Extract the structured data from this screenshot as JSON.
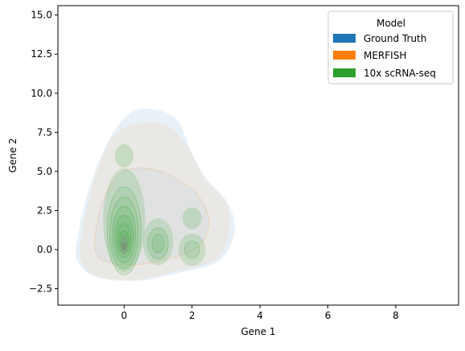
{
  "chart_data": {
    "type": "kde-density",
    "title": "",
    "xlabel": "Gene 1",
    "ylabel": "Gene 2",
    "xlim": [
      -1.95,
      9.85
    ],
    "ylim": [
      -3.55,
      15.6
    ],
    "xticks": [
      0,
      2,
      4,
      6,
      8
    ],
    "xtick_labels": [
      "0",
      "2",
      "4",
      "6",
      "8"
    ],
    "yticks": [
      -2.5,
      0.0,
      2.5,
      5.0,
      7.5,
      10.0,
      12.5,
      15.0
    ],
    "ytick_labels": [
      "−2.5",
      "0.0",
      "2.5",
      "5.0",
      "7.5",
      "10.0",
      "12.5",
      "15.0"
    ],
    "grid": false,
    "legend": {
      "title": "Model",
      "placement": "top-right",
      "entries": [
        {
          "name": "Ground Truth",
          "color": "#1f77b4"
        },
        {
          "name": "MERFISH",
          "color": "#ff7f0e"
        },
        {
          "name": "10x scRNA-seq",
          "color": "#2ca02c"
        }
      ]
    },
    "series": [
      {
        "name": "Ground Truth",
        "color": "#1f77b4",
        "approx_outer_extent": {
          "x": [
            -1.4,
            3.2
          ],
          "y": [
            -2.0,
            9.0
          ]
        },
        "modes": [
          {
            "x": 0,
            "y": 0.3
          },
          {
            "x": 1,
            "y": 0.5
          },
          {
            "x": 2,
            "y": 0.0
          }
        ]
      },
      {
        "name": "MERFISH",
        "color": "#ff7f0e",
        "approx_outer_extent": {
          "x": [
            -1.3,
            3.2
          ],
          "y": [
            -2.0,
            8.2
          ]
        },
        "modes": [
          {
            "x": 0,
            "y": 0.3
          },
          {
            "x": 1,
            "y": 0.5
          },
          {
            "x": 2,
            "y": 0.0
          }
        ]
      },
      {
        "name": "10x scRNA-seq",
        "color": "#2ca02c",
        "approx_outer_extent": {
          "x": [
            -0.5,
            2.4
          ],
          "y": [
            -1.3,
            6.6
          ]
        },
        "modes": [
          {
            "x": 0,
            "y": 0.3
          },
          {
            "x": 0,
            "y": 6.0
          },
          {
            "x": 1,
            "y": 0.5
          },
          {
            "x": 2,
            "y": 2.0
          },
          {
            "x": 2,
            "y": 0.0
          }
        ]
      }
    ]
  }
}
